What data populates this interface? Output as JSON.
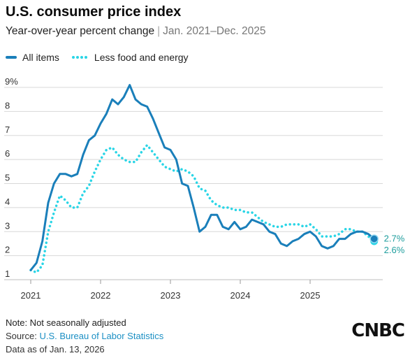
{
  "header": {
    "title": "U.S. consumer price index",
    "subtitle_main": "Year-over-year percent change",
    "subtitle_sep": "|",
    "subtitle_range": "Jan. 2021–Dec. 2025"
  },
  "legend": {
    "all_items": "All items",
    "core": "Less food and energy"
  },
  "colors": {
    "all_items": "#1a7fba",
    "core": "#29d5e6",
    "grid": "#d8d8d8",
    "end_label": "#1f9e9e"
  },
  "end_labels": {
    "all_items": "2.7%",
    "core": "2.6%"
  },
  "footer": {
    "note": "Note: Not seasonally adjusted",
    "source_prefix": "Source:",
    "source_name": "U.S. Bureau of Labor Statistics",
    "as_of": "Data as of Jan. 13, 2026"
  },
  "logo": {
    "text": "CNBC"
  },
  "chart_data": {
    "type": "line",
    "x_start": "2021-01",
    "x_end": "2025-12",
    "xticks": [
      "2021",
      "2022",
      "2023",
      "2024",
      "2025"
    ],
    "yticks": [
      "1",
      "2",
      "3",
      "4",
      "5",
      "6",
      "7",
      "8",
      "9%"
    ],
    "ylim": [
      1,
      9
    ],
    "grid": true,
    "legend_position": "top-left",
    "series": [
      {
        "name": "All items",
        "style": "solid",
        "values": [
          1.4,
          1.7,
          2.6,
          4.2,
          5.0,
          5.4,
          5.4,
          5.3,
          5.4,
          6.2,
          6.8,
          7.0,
          7.5,
          7.9,
          8.5,
          8.3,
          8.6,
          9.1,
          8.5,
          8.3,
          8.2,
          7.7,
          7.1,
          6.5,
          6.4,
          6.0,
          5.0,
          4.9,
          4.0,
          3.0,
          3.2,
          3.7,
          3.7,
          3.2,
          3.1,
          3.4,
          3.1,
          3.2,
          3.5,
          3.4,
          3.3,
          3.0,
          2.9,
          2.5,
          2.4,
          2.6,
          2.7,
          2.9,
          3.0,
          2.8,
          2.4,
          2.3,
          2.4,
          2.7,
          2.7,
          2.9,
          3.0,
          3.0,
          2.9,
          2.7
        ]
      },
      {
        "name": "Less food and energy",
        "style": "dotted",
        "values": [
          1.4,
          1.3,
          1.6,
          3.0,
          3.8,
          4.5,
          4.3,
          4.0,
          4.0,
          4.6,
          4.9,
          5.5,
          6.0,
          6.4,
          6.5,
          6.2,
          6.0,
          5.9,
          5.9,
          6.3,
          6.6,
          6.3,
          6.0,
          5.7,
          5.6,
          5.5,
          5.6,
          5.5,
          5.3,
          4.8,
          4.7,
          4.3,
          4.1,
          4.0,
          4.0,
          3.9,
          3.9,
          3.8,
          3.8,
          3.6,
          3.4,
          3.3,
          3.2,
          3.2,
          3.3,
          3.3,
          3.3,
          3.2,
          3.3,
          3.1,
          2.8,
          2.8,
          2.8,
          2.9,
          3.1,
          3.1,
          3.0,
          3.0,
          2.8,
          2.6
        ]
      }
    ]
  }
}
